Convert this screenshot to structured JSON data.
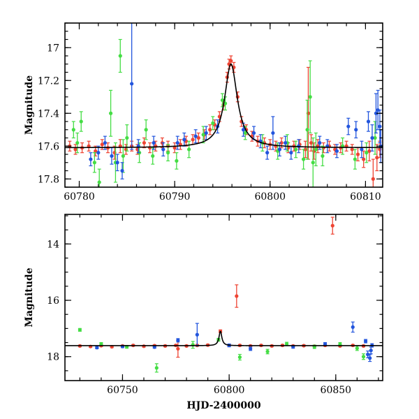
{
  "chart_data": [
    {
      "type": "scatter",
      "panel": "top",
      "xlabel": "",
      "ylabel": "Magnitude",
      "xlim": [
        60778.5,
        60811.8
      ],
      "ylim": [
        17.85,
        16.85
      ],
      "y_inverted": true,
      "xticks": [
        60780,
        60790,
        60800,
        60810
      ],
      "yticks": [
        17,
        17.2,
        17.4,
        17.6,
        17.8
      ],
      "xtick_labels": [
        "60780",
        "60790",
        "60800",
        "60810"
      ],
      "ytick_labels": [
        "17",
        "17.2",
        "17.4",
        "17.6",
        "17.8"
      ],
      "colors": {
        "red": "#ee4433",
        "green": "#44dd44",
        "blue": "#2255dd",
        "model": "#000000"
      },
      "model": {
        "baseline": 17.61,
        "peak_x": 60795.9,
        "peak_mag": 17.1,
        "width_days": 1.2
      },
      "series": [
        {
          "color": "red",
          "points": [
            [
              60779.0,
              17.6,
              0.03
            ],
            [
              60779.6,
              17.62,
              0.03
            ],
            [
              60780.3,
              17.61,
              0.03
            ],
            [
              60781.0,
              17.6,
              0.03
            ],
            [
              60781.7,
              17.63,
              0.03
            ],
            [
              60782.4,
              17.59,
              0.03
            ],
            [
              60783.0,
              17.61,
              0.03
            ],
            [
              60783.7,
              17.64,
              0.04
            ],
            [
              60784.3,
              17.6,
              0.04
            ],
            [
              60784.9,
              17.62,
              0.03
            ],
            [
              60785.5,
              17.6,
              0.03
            ],
            [
              60786.1,
              17.62,
              0.03
            ],
            [
              60786.8,
              17.58,
              0.03
            ],
            [
              60787.4,
              17.61,
              0.03
            ],
            [
              60788.0,
              17.6,
              0.03
            ],
            [
              60788.7,
              17.58,
              0.03
            ],
            [
              60789.3,
              17.6,
              0.03
            ],
            [
              60790.0,
              17.61,
              0.03
            ],
            [
              60790.6,
              17.59,
              0.03
            ],
            [
              60791.2,
              17.57,
              0.03
            ],
            [
              60791.9,
              17.56,
              0.03
            ],
            [
              60792.5,
              17.55,
              0.03
            ],
            [
              60793.1,
              17.53,
              0.03
            ],
            [
              60793.7,
              17.5,
              0.03
            ],
            [
              60794.2,
              17.47,
              0.03
            ],
            [
              60794.7,
              17.42,
              0.03
            ],
            [
              60795.1,
              17.35,
              0.03
            ],
            [
              60795.5,
              17.18,
              0.03
            ],
            [
              60795.7,
              17.1,
              0.03
            ],
            [
              60795.9,
              17.08,
              0.03
            ],
            [
              60796.2,
              17.12,
              0.03
            ],
            [
              60796.6,
              17.3,
              0.03
            ],
            [
              60797.0,
              17.45,
              0.03
            ],
            [
              60797.5,
              17.5,
              0.03
            ],
            [
              60798.1,
              17.54,
              0.03
            ],
            [
              60798.7,
              17.57,
              0.03
            ],
            [
              60799.4,
              17.58,
              0.03
            ],
            [
              60800.0,
              17.59,
              0.03
            ],
            [
              60800.6,
              17.6,
              0.03
            ],
            [
              60801.2,
              17.58,
              0.03
            ],
            [
              60801.9,
              17.61,
              0.03
            ],
            [
              60802.5,
              17.6,
              0.03
            ],
            [
              60803.1,
              17.59,
              0.03
            ],
            [
              60803.7,
              17.62,
              0.05
            ],
            [
              60804.0,
              17.4,
              0.28
            ],
            [
              60804.3,
              17.58,
              0.05
            ],
            [
              60804.6,
              17.63,
              0.05
            ],
            [
              60805.0,
              17.6,
              0.04
            ],
            [
              60805.6,
              17.61,
              0.03
            ],
            [
              60806.2,
              17.6,
              0.03
            ],
            [
              60806.8,
              17.62,
              0.03
            ],
            [
              60807.4,
              17.61,
              0.03
            ],
            [
              60808.0,
              17.6,
              0.03
            ],
            [
              60808.6,
              17.62,
              0.03
            ],
            [
              60809.2,
              17.65,
              0.04
            ],
            [
              60809.8,
              17.68,
              0.05
            ],
            [
              60810.4,
              17.63,
              0.06
            ],
            [
              60810.8,
              17.8,
              0.12
            ],
            [
              60811.2,
              17.67,
              0.08
            ],
            [
              60811.5,
              17.62,
              0.05
            ]
          ]
        },
        {
          "color": "green",
          "points": [
            [
              60779.4,
              17.5,
              0.05
            ],
            [
              60779.8,
              17.58,
              0.06
            ],
            [
              60780.2,
              17.45,
              0.06
            ],
            [
              60781.6,
              17.7,
              0.06
            ],
            [
              60782.1,
              17.82,
              0.08
            ],
            [
              60783.3,
              17.4,
              0.14
            ],
            [
              60783.8,
              17.7,
              0.12
            ],
            [
              60784.3,
              17.05,
              0.1
            ],
            [
              60784.6,
              17.66,
              0.1
            ],
            [
              60785.0,
              17.55,
              0.08
            ],
            [
              60786.3,
              17.64,
              0.06
            ],
            [
              60787.0,
              17.5,
              0.06
            ],
            [
              60787.7,
              17.66,
              0.05
            ],
            [
              60789.3,
              17.64,
              0.05
            ],
            [
              60790.2,
              17.69,
              0.05
            ],
            [
              60791.5,
              17.62,
              0.05
            ],
            [
              60793.0,
              17.53,
              0.05
            ],
            [
              60794.0,
              17.46,
              0.04
            ],
            [
              60795.0,
              17.32,
              0.04
            ],
            [
              60795.3,
              17.34,
              0.04
            ],
            [
              60797.4,
              17.52,
              0.04
            ],
            [
              60799.2,
              17.58,
              0.05
            ],
            [
              60800.8,
              17.63,
              0.05
            ],
            [
              60801.8,
              17.58,
              0.05
            ],
            [
              60802.7,
              17.62,
              0.05
            ],
            [
              60803.5,
              17.68,
              0.06
            ],
            [
              60803.9,
              17.5,
              0.18
            ],
            [
              60804.2,
              17.3,
              0.22
            ],
            [
              60804.5,
              17.7,
              0.15
            ],
            [
              60804.8,
              17.62,
              0.1
            ],
            [
              60805.5,
              17.66,
              0.06
            ],
            [
              60807.6,
              17.6,
              0.05
            ],
            [
              60808.9,
              17.68,
              0.06
            ],
            [
              60810.1,
              17.64,
              0.06
            ],
            [
              60811.0,
              17.55,
              0.1
            ]
          ]
        },
        {
          "color": "blue",
          "points": [
            [
              60781.2,
              17.68,
              0.04
            ],
            [
              60782.0,
              17.64,
              0.04
            ],
            [
              60782.7,
              17.58,
              0.04
            ],
            [
              60783.4,
              17.66,
              0.05
            ],
            [
              60784.0,
              17.7,
              0.05
            ],
            [
              60784.5,
              17.75,
              0.05
            ],
            [
              60785.5,
              17.22,
              0.4
            ],
            [
              60786.2,
              17.6,
              0.04
            ],
            [
              60787.8,
              17.58,
              0.04
            ],
            [
              60788.8,
              17.62,
              0.04
            ],
            [
              60790.3,
              17.58,
              0.04
            ],
            [
              60791.0,
              17.56,
              0.04
            ],
            [
              60792.2,
              17.54,
              0.04
            ],
            [
              60793.3,
              17.52,
              0.04
            ],
            [
              60794.5,
              17.48,
              0.04
            ],
            [
              60797.2,
              17.5,
              0.04
            ],
            [
              60798.3,
              17.52,
              0.04
            ],
            [
              60799.0,
              17.57,
              0.04
            ],
            [
              60799.7,
              17.64,
              0.04
            ],
            [
              60800.3,
              17.52,
              0.1
            ],
            [
              60801.0,
              17.62,
              0.04
            ],
            [
              60801.6,
              17.58,
              0.04
            ],
            [
              60802.2,
              17.64,
              0.04
            ],
            [
              60803.0,
              17.6,
              0.04
            ],
            [
              60805.2,
              17.58,
              0.04
            ],
            [
              60806.0,
              17.6,
              0.04
            ],
            [
              60807.0,
              17.63,
              0.04
            ],
            [
              60808.2,
              17.48,
              0.05
            ],
            [
              60809.0,
              17.5,
              0.05
            ],
            [
              60809.6,
              17.62,
              0.05
            ],
            [
              60810.3,
              17.45,
              0.06
            ],
            [
              60810.7,
              17.55,
              0.08
            ],
            [
              60811.1,
              17.4,
              0.12
            ],
            [
              60811.3,
              17.38,
              0.12
            ],
            [
              60811.5,
              17.48,
              0.1
            ],
            [
              60811.6,
              17.6,
              0.1
            ]
          ]
        }
      ]
    },
    {
      "type": "scatter",
      "panel": "bottom",
      "xlabel": "HJD-2400000",
      "ylabel": "Magnitude",
      "xlim": [
        60723,
        60872
      ],
      "ylim": [
        18.85,
        12.95
      ],
      "y_inverted": true,
      "xticks": [
        60750,
        60800,
        60850
      ],
      "yticks": [
        14,
        16,
        18
      ],
      "xtick_labels": [
        "60750",
        "60800",
        "60850"
      ],
      "ytick_labels": [
        "14",
        "16",
        "18"
      ],
      "colors": {
        "red": "#ee4433",
        "green": "#44dd44",
        "blue": "#2255dd",
        "model": "#000000"
      },
      "model": {
        "baseline": 17.61,
        "peak_x": 60795.9,
        "peak_mag": 17.1,
        "width_days": 1.2
      },
      "series": [
        {
          "color": "red",
          "points": [
            [
              60730,
              17.62,
              0.03
            ],
            [
              60735,
              17.64,
              0.03
            ],
            [
              60740,
              17.61,
              0.03
            ],
            [
              60745,
              17.65,
              0.03
            ],
            [
              60750,
              17.62,
              0.03
            ],
            [
              60755,
              17.6,
              0.03
            ],
            [
              60760,
              17.63,
              0.03
            ],
            [
              60765,
              17.61,
              0.03
            ],
            [
              60770,
              17.62,
              0.03
            ],
            [
              60775,
              17.6,
              0.03
            ],
            [
              60776,
              17.72,
              0.3
            ],
            [
              60780,
              17.62,
              0.03
            ],
            [
              60785,
              17.6,
              0.03
            ],
            [
              60790,
              17.59,
              0.03
            ],
            [
              60795.9,
              17.1,
              0.05
            ],
            [
              60800,
              17.6,
              0.03
            ],
            [
              60803.5,
              15.85,
              0.4
            ],
            [
              60805,
              17.6,
              0.03
            ],
            [
              60810,
              17.62,
              0.03
            ],
            [
              60815,
              17.6,
              0.03
            ],
            [
              60820,
              17.62,
              0.03
            ],
            [
              60825,
              17.6,
              0.03
            ],
            [
              60830,
              17.62,
              0.03
            ],
            [
              60835,
              17.61,
              0.03
            ],
            [
              60840,
              17.63,
              0.03
            ],
            [
              60845,
              17.6,
              0.03
            ],
            [
              60848.5,
              13.35,
              0.3
            ],
            [
              60852,
              17.62,
              0.03
            ],
            [
              60858,
              17.6,
              0.03
            ],
            [
              60863,
              17.62,
              0.03
            ]
          ]
        },
        {
          "color": "green",
          "points": [
            [
              60730,
              17.05,
              0.05
            ],
            [
              60740,
              17.55,
              0.05
            ],
            [
              60752,
              17.65,
              0.05
            ],
            [
              60766,
              18.4,
              0.15
            ],
            [
              60783,
              17.58,
              0.12
            ],
            [
              60795,
              17.4,
              0.05
            ],
            [
              60805,
              18.02,
              0.1
            ],
            [
              60818,
              17.82,
              0.08
            ],
            [
              60827,
              17.55,
              0.06
            ],
            [
              60840,
              17.65,
              0.06
            ],
            [
              60852,
              17.56,
              0.06
            ],
            [
              60860,
              17.7,
              0.08
            ],
            [
              60863,
              18.0,
              0.1
            ]
          ]
        },
        {
          "color": "blue",
          "points": [
            [
              60738,
              17.68,
              0.04
            ],
            [
              60750,
              17.64,
              0.04
            ],
            [
              60765,
              17.66,
              0.04
            ],
            [
              60776,
              17.42,
              0.06
            ],
            [
              60785,
              17.22,
              0.4
            ],
            [
              60800,
              17.6,
              0.05
            ],
            [
              60810,
              17.72,
              0.06
            ],
            [
              60830,
              17.65,
              0.05
            ],
            [
              60845,
              17.55,
              0.05
            ],
            [
              60858,
              16.95,
              0.18
            ],
            [
              60864,
              17.45,
              0.06
            ],
            [
              60865,
              17.92,
              0.12
            ],
            [
              60866,
              18.05,
              0.12
            ],
            [
              60866.5,
              17.78,
              0.12
            ],
            [
              60867,
              17.6,
              0.06
            ]
          ]
        }
      ]
    }
  ]
}
